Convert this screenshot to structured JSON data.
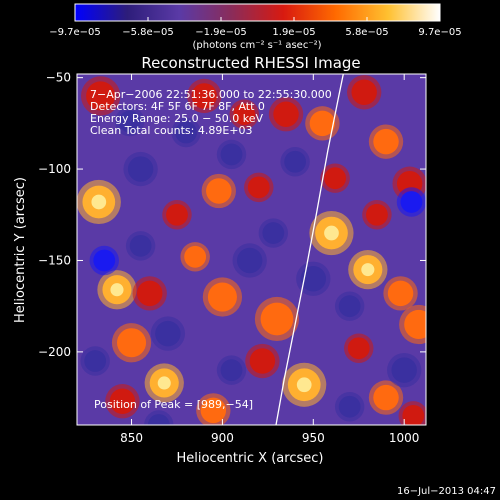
{
  "chart_data": {
    "type": "heatmap",
    "title": "Reconstructed RHESSI Image",
    "xlabel": "Heliocentric X (arcsec)",
    "ylabel": "Heliocentric Y (arcsec)",
    "xlim": [
      820,
      1012
    ],
    "ylim": [
      -240,
      -48
    ],
    "x_ticks": [
      850,
      900,
      950,
      1000
    ],
    "x_tick_labels": [
      "850",
      "900",
      "950",
      "1000"
    ],
    "y_ticks": [
      -50,
      -100,
      -150,
      -200
    ],
    "y_tick_labels": [
      "−50",
      "−100",
      "−150",
      "−200"
    ],
    "colorbar": {
      "range": [
        -9.7e-05,
        9.7e-05
      ],
      "tick_labels": [
        "−9.7e−05",
        "−5.8e−05",
        "−1.9e−05",
        "1.9e−05",
        "5.8e−05",
        "9.7e−05"
      ],
      "unit": "(photons cm⁻² s⁻¹ asec⁻²)",
      "colors": [
        "#0000ff",
        "#2d1d7a",
        "#5a3aa6",
        "#8a2c5a",
        "#d81a10",
        "#ff6a00",
        "#ffc030",
        "#ffffff"
      ]
    },
    "annotations": {
      "time_range": "7−Apr−2006 22:51:36.000 to 22:55:30.000",
      "detectors": "Detectors: 4F 5F 6F 7F 8F, Att 0",
      "energy_range": "Energy Range: 25.0 − 50.0 keV",
      "clean": "Clean     Total counts: 4.89E+03",
      "peak": "Position of Peak = [989,−54]"
    },
    "limb_curve": [
      [
        929.5,
        -240
      ],
      [
        934,
        -215
      ],
      [
        940,
        -185
      ],
      [
        946,
        -155
      ],
      [
        952,
        -123
      ],
      [
        958,
        -90
      ],
      [
        964,
        -60
      ],
      [
        966.5,
        -48
      ]
    ],
    "blobs": [
      [
        832,
        -118,
        0.95,
        9
      ],
      [
        833,
        -60,
        0.55,
        8
      ],
      [
        842,
        -166,
        0.85,
        8
      ],
      [
        860,
        -168,
        0.55,
        7
      ],
      [
        900,
        -170,
        0.6,
        8
      ],
      [
        885,
        -148,
        0.6,
        6
      ],
      [
        890,
        -60,
        0.5,
        7
      ],
      [
        912,
        -70,
        0.45,
        6
      ],
      [
        935,
        -70,
        0.55,
        7
      ],
      [
        875,
        -125,
        0.55,
        6
      ],
      [
        898,
        -112,
        0.6,
        7
      ],
      [
        920,
        -110,
        0.5,
        6
      ],
      [
        850,
        -195,
        0.75,
        8
      ],
      [
        868,
        -217,
        0.8,
        8
      ],
      [
        845,
        -227,
        0.55,
        7
      ],
      [
        895,
        -232,
        0.65,
        7
      ],
      [
        930,
        -182,
        0.75,
        9
      ],
      [
        922,
        -205,
        0.55,
        7
      ],
      [
        955,
        -75,
        0.6,
        7
      ],
      [
        962,
        -105,
        0.5,
        6
      ],
      [
        960,
        -135,
        0.9,
        9
      ],
      [
        980,
        -155,
        0.85,
        8
      ],
      [
        985,
        -125,
        0.55,
        6
      ],
      [
        998,
        -168,
        0.6,
        7
      ],
      [
        1008,
        -185,
        0.7,
        8
      ],
      [
        990,
        -85,
        0.65,
        7
      ],
      [
        1003,
        -108,
        0.55,
        7
      ],
      [
        978,
        -58,
        0.5,
        7
      ],
      [
        945,
        -218,
        0.8,
        9
      ],
      [
        975,
        -198,
        0.45,
        6
      ],
      [
        990,
        -225,
        0.6,
        7
      ],
      [
        1005,
        -235,
        0.55,
        6
      ],
      [
        835,
        -150,
        -0.6,
        6
      ],
      [
        855,
        -100,
        -0.5,
        7
      ],
      [
        849,
        -74,
        -0.5,
        6
      ],
      [
        855,
        -142,
        -0.5,
        6
      ],
      [
        870,
        -190,
        -0.5,
        7
      ],
      [
        880,
        -80,
        -0.45,
        6
      ],
      [
        905,
        -92,
        -0.45,
        6
      ],
      [
        915,
        -150,
        -0.45,
        7
      ],
      [
        928,
        -135,
        -0.5,
        6
      ],
      [
        865,
        -240,
        -0.5,
        6
      ],
      [
        905,
        -210,
        -0.45,
        6
      ],
      [
        950,
        -160,
        -0.5,
        7
      ],
      [
        970,
        -175,
        -0.45,
        6
      ],
      [
        1004,
        -118,
        -0.6,
        6
      ],
      [
        1000,
        -210,
        -0.5,
        7
      ],
      [
        970,
        -230,
        -0.5,
        6
      ],
      [
        830,
        -205,
        -0.45,
        6
      ],
      [
        940,
        -96,
        -0.45,
        6
      ]
    ],
    "grid": false
  },
  "footer": {
    "timestamp": "16−Jul−2013 04:47"
  }
}
